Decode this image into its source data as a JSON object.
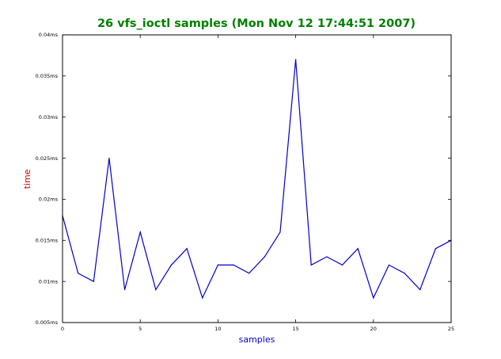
{
  "chart_data": {
    "type": "line",
    "title": "26 vfs_ioctl samples (Mon Nov 12 17:44:51 2007)",
    "xlabel": "samples",
    "ylabel": "time",
    "xlim": [
      0,
      25
    ],
    "ylim": [
      0.005,
      0.04
    ],
    "x_ticks": [
      0,
      5,
      10,
      15,
      20,
      25
    ],
    "x_tick_labels": [
      "0",
      "5",
      "10",
      "15",
      "20",
      "25"
    ],
    "y_ticks": [
      0.005,
      0.01,
      0.015,
      0.02,
      0.025,
      0.03,
      0.035,
      0.04
    ],
    "y_tick_labels": [
      "0.005ms",
      "0.01ms",
      "0.015ms",
      "0.02ms",
      "0.025ms",
      "0.03ms",
      "0.035ms",
      "0.04ms"
    ],
    "grid": false,
    "legend": "none",
    "colors": {
      "title": "#008000",
      "xlabel": "#0000cc",
      "ylabel": "#cc0000",
      "line": "#0000cc"
    },
    "series": [
      {
        "x": [
          0,
          1,
          2,
          3,
          4,
          5,
          6,
          7,
          8,
          9,
          10,
          11,
          12,
          13,
          14,
          15,
          16,
          17,
          18,
          19,
          20,
          21,
          22,
          23,
          24,
          25
        ],
        "values": [
          0.018,
          0.011,
          0.01,
          0.025,
          0.009,
          0.016,
          0.009,
          0.012,
          0.014,
          0.008,
          0.012,
          0.012,
          0.011,
          0.013,
          0.016,
          0.037,
          0.012,
          0.013,
          0.012,
          0.014,
          0.008,
          0.012,
          0.011,
          0.009,
          0.014,
          0.015
        ]
      }
    ]
  }
}
